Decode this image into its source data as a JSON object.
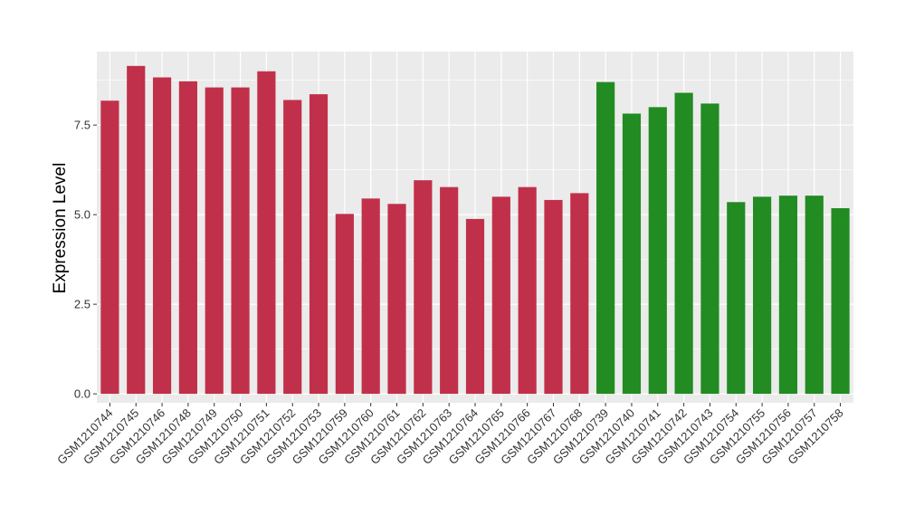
{
  "chart_data": {
    "type": "bar",
    "title": "",
    "xlabel": "",
    "ylabel": "Expression Level",
    "ylim": [
      -0.25,
      9.55
    ],
    "yticks": [
      0.0,
      2.5,
      5.0,
      7.5
    ],
    "ytick_labels": [
      "0.0",
      "2.5",
      "5.0",
      "7.5"
    ],
    "grid": true,
    "legend": "none",
    "colors": {
      "group_1": "#c1304a",
      "group_2": "#228b22",
      "panel": "#ebebeb",
      "grid": "#ffffff",
      "axis_text": "#333333"
    },
    "categories": [
      "GSM1210744",
      "GSM1210745",
      "GSM1210746",
      "GSM1210748",
      "GSM1210749",
      "GSM1210750",
      "GSM1210751",
      "GSM1210752",
      "GSM1210753",
      "GSM1210759",
      "GSM1210760",
      "GSM1210761",
      "GSM1210762",
      "GSM1210763",
      "GSM1210764",
      "GSM1210765",
      "GSM1210766",
      "GSM1210767",
      "GSM1210768",
      "GSM1210739",
      "GSM1210740",
      "GSM1210741",
      "GSM1210742",
      "GSM1210743",
      "GSM1210754",
      "GSM1210755",
      "GSM1210756",
      "GSM1210757",
      "GSM1210758"
    ],
    "values": [
      8.18,
      9.15,
      8.83,
      8.72,
      8.55,
      8.55,
      9.0,
      8.2,
      8.36,
      5.02,
      5.45,
      5.3,
      5.96,
      5.77,
      4.88,
      5.5,
      5.77,
      5.41,
      5.6,
      8.7,
      7.82,
      8.0,
      8.4,
      8.1,
      5.35,
      5.5,
      5.53,
      5.53,
      5.18
    ],
    "bar_groups": [
      "group_1",
      "group_1",
      "group_1",
      "group_1",
      "group_1",
      "group_1",
      "group_1",
      "group_1",
      "group_1",
      "group_1",
      "group_1",
      "group_1",
      "group_1",
      "group_1",
      "group_1",
      "group_1",
      "group_1",
      "group_1",
      "group_1",
      "group_2",
      "group_2",
      "group_2",
      "group_2",
      "group_2",
      "group_2",
      "group_2",
      "group_2",
      "group_2",
      "group_2"
    ]
  }
}
